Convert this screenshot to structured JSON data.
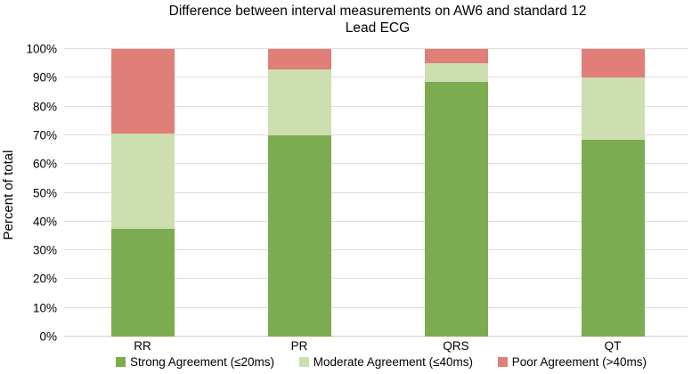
{
  "title_lines": [
    "Difference between interval measurements on AW6 and standard 12",
    "Lead ECG"
  ],
  "chart_data": {
    "type": "bar",
    "stacked": true,
    "title": "Difference between interval measurements on AW6 and standard 12 Lead ECG",
    "xlabel": "",
    "ylabel": "Percent of total",
    "ylim": [
      0,
      100
    ],
    "yticks": [
      "0%",
      "10%",
      "20%",
      "30%",
      "40%",
      "50%",
      "60%",
      "70%",
      "80%",
      "90%",
      "100%"
    ],
    "grid": true,
    "legend_position": "bottom",
    "categories": [
      "RR",
      "PR",
      "QRS",
      "QT"
    ],
    "series": [
      {
        "name": "Strong Agreement (≤20ms)",
        "values": [
          37.5,
          70.0,
          88.5,
          68.5
        ],
        "color": "#7DAB4F"
      },
      {
        "name": "Moderate Agreement (≤40ms)",
        "values": [
          33.0,
          23.0,
          6.5,
          21.5
        ],
        "color": "#CDDFB0"
      },
      {
        "name": "Poor Agreement (>40ms)",
        "values": [
          29.5,
          7.0,
          5.0,
          10.0
        ],
        "color": "#E07E79"
      }
    ]
  },
  "colors": {
    "gridline": "#DCDCDC",
    "axis_line": "#CFCFCF",
    "text": "#000000",
    "background": "#FFFFFF"
  }
}
